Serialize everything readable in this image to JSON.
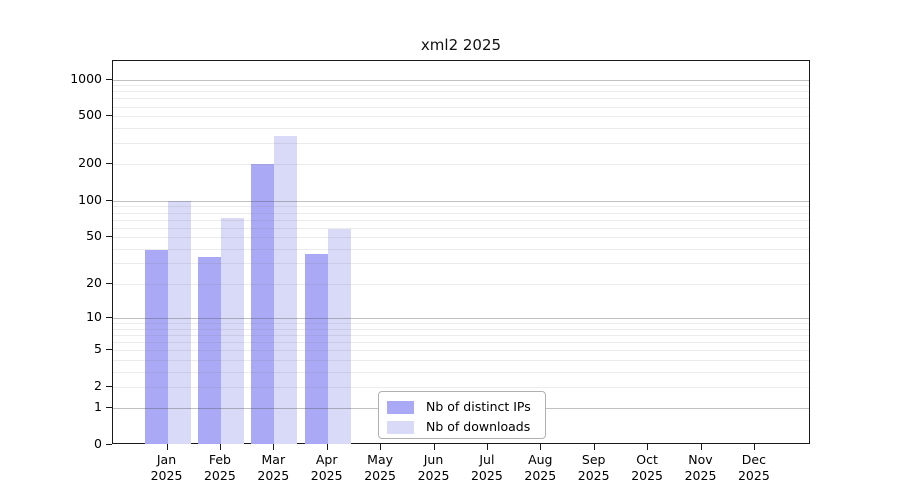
{
  "chart_data": {
    "type": "bar",
    "title": "xml2 2025",
    "categories": [
      "Jan",
      "Feb",
      "Mar",
      "Apr",
      "May",
      "Jun",
      "Jul",
      "Aug",
      "Sep",
      "Oct",
      "Nov",
      "Dec"
    ],
    "x_tick_line2": "2025",
    "series": [
      {
        "name": "Nb of distinct IPs",
        "color": "#a9a9f6",
        "values": [
          39,
          34,
          200,
          36,
          0,
          0,
          0,
          0,
          0,
          0,
          0,
          0
        ]
      },
      {
        "name": "Nb of downloads",
        "color": "#d9d9f8",
        "values": [
          100,
          72,
          345,
          58,
          0,
          0,
          0,
          0,
          0,
          0,
          0,
          0
        ]
      }
    ],
    "y_ticks": [
      0,
      1,
      2,
      5,
      10,
      20,
      50,
      100,
      200,
      500,
      1000
    ],
    "y_scale": "log10(value+1)",
    "ylim": [
      0,
      1420
    ],
    "grid": {
      "major_at": [
        1,
        10,
        100,
        1000
      ],
      "minor_at": "2..9 times each decade",
      "major_color": "#bcbcbc",
      "minor_color": "#e9e9e9",
      "drawn_over_bars": true
    },
    "legend": {
      "position": "inside-bottom-center"
    }
  },
  "colors": {
    "axis": "#1a1a1a",
    "text": "#000000",
    "legend_border": "#b0b0b0",
    "background": "#ffffff"
  }
}
